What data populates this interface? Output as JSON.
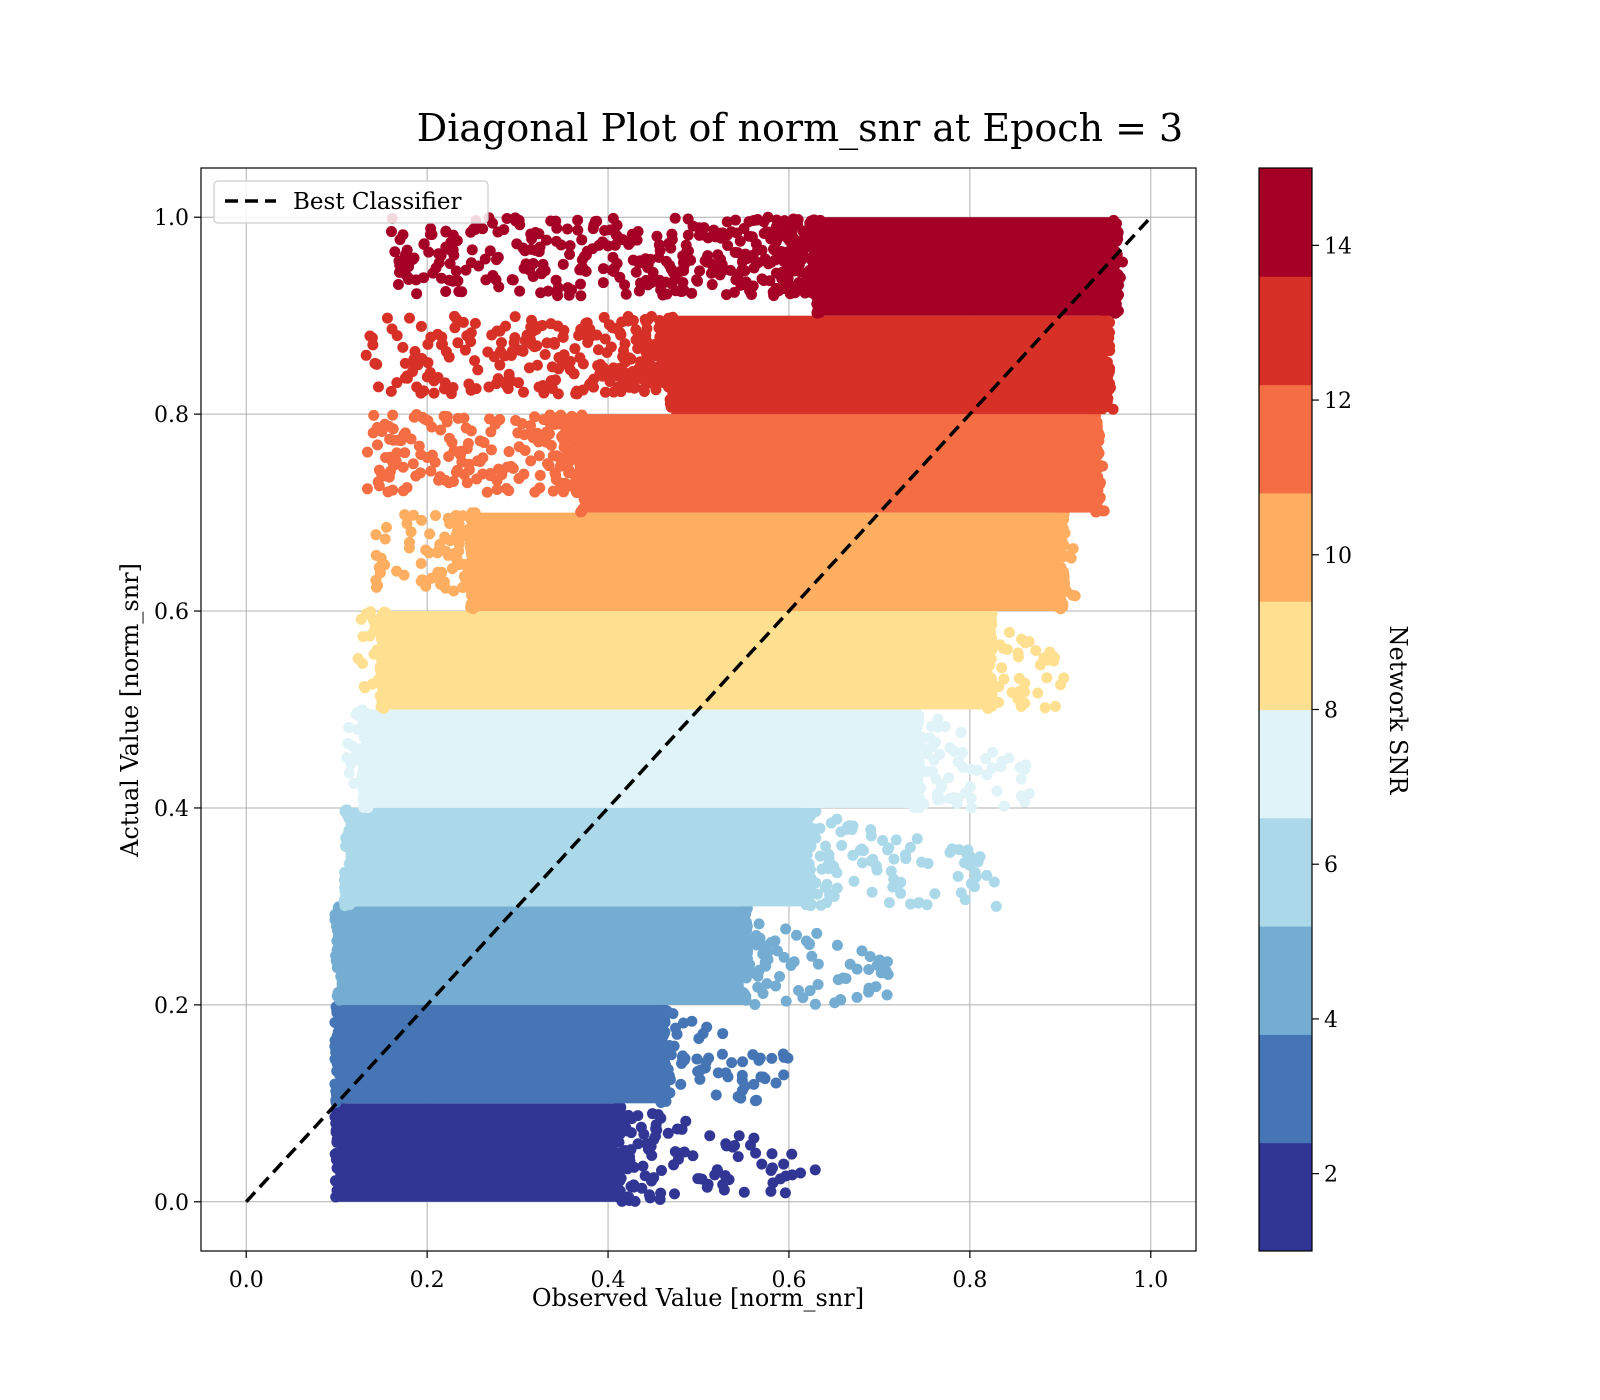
{
  "chart_data": {
    "type": "scatter",
    "title": "Diagonal Plot of norm_snr at Epoch = 3",
    "xlabel": "Observed Value [norm_snr]",
    "ylabel": "Actual Value [norm_snr]",
    "xlim": [
      -0.05,
      1.05
    ],
    "ylim": [
      -0.05,
      1.05
    ],
    "xticks": [
      "0.0",
      "0.2",
      "0.4",
      "0.6",
      "0.8",
      "1.0"
    ],
    "yticks": [
      "0.0",
      "0.2",
      "0.4",
      "0.6",
      "0.8",
      "1.0"
    ],
    "grid": true,
    "legend": {
      "placement": "upper-left",
      "entries": [
        "Best Classifier"
      ]
    },
    "reference_line": {
      "name": "Best Classifier",
      "x": [
        0.0,
        1.0
      ],
      "y": [
        0.0,
        1.0
      ],
      "style": "dashed",
      "color": "#000000"
    },
    "colorbar": {
      "label": "Network SNR",
      "range": [
        1,
        15
      ],
      "ticks": [
        "2",
        "4",
        "6",
        "8",
        "10",
        "12",
        "14"
      ],
      "colormap": "RdYlBu_r",
      "band_colors": [
        "#313695",
        "#4575b4",
        "#74add1",
        "#abd9e9",
        "#e0f3f8",
        "#fee090",
        "#fdae61",
        "#f46d43",
        "#d73027",
        "#a50026"
      ]
    },
    "point_bands": [
      {
        "actual_range": [
          0.0,
          0.1
        ],
        "observed_core": [
          0.1,
          0.41
        ],
        "observed_scatter": [
          0.1,
          0.63
        ]
      },
      {
        "actual_range": [
          0.1,
          0.2
        ],
        "observed_core": [
          0.1,
          0.46
        ],
        "observed_scatter": [
          0.1,
          0.6
        ]
      },
      {
        "actual_range": [
          0.2,
          0.3
        ],
        "observed_core": [
          0.1,
          0.55
        ],
        "observed_scatter": [
          0.1,
          0.71
        ]
      },
      {
        "actual_range": [
          0.3,
          0.4
        ],
        "observed_core": [
          0.11,
          0.62
        ],
        "observed_scatter": [
          0.11,
          0.83
        ]
      },
      {
        "actual_range": [
          0.4,
          0.5
        ],
        "observed_core": [
          0.13,
          0.74
        ],
        "observed_scatter": [
          0.11,
          0.87
        ]
      },
      {
        "actual_range": [
          0.5,
          0.6
        ],
        "observed_core": [
          0.15,
          0.82
        ],
        "observed_scatter": [
          0.12,
          0.91
        ]
      },
      {
        "actual_range": [
          0.6,
          0.7
        ],
        "observed_core": [
          0.25,
          0.9
        ],
        "observed_scatter": [
          0.14,
          0.92
        ]
      },
      {
        "actual_range": [
          0.7,
          0.8
        ],
        "observed_core": [
          0.37,
          0.94
        ],
        "observed_scatter": [
          0.13,
          0.95
        ]
      },
      {
        "actual_range": [
          0.8,
          0.9
        ],
        "observed_core": [
          0.47,
          0.95
        ],
        "observed_scatter": [
          0.13,
          0.96
        ]
      },
      {
        "actual_range": [
          0.9,
          1.0
        ],
        "observed_core": [
          0.63,
          0.96
        ],
        "observed_scatter": [
          0.16,
          0.97
        ]
      }
    ]
  }
}
